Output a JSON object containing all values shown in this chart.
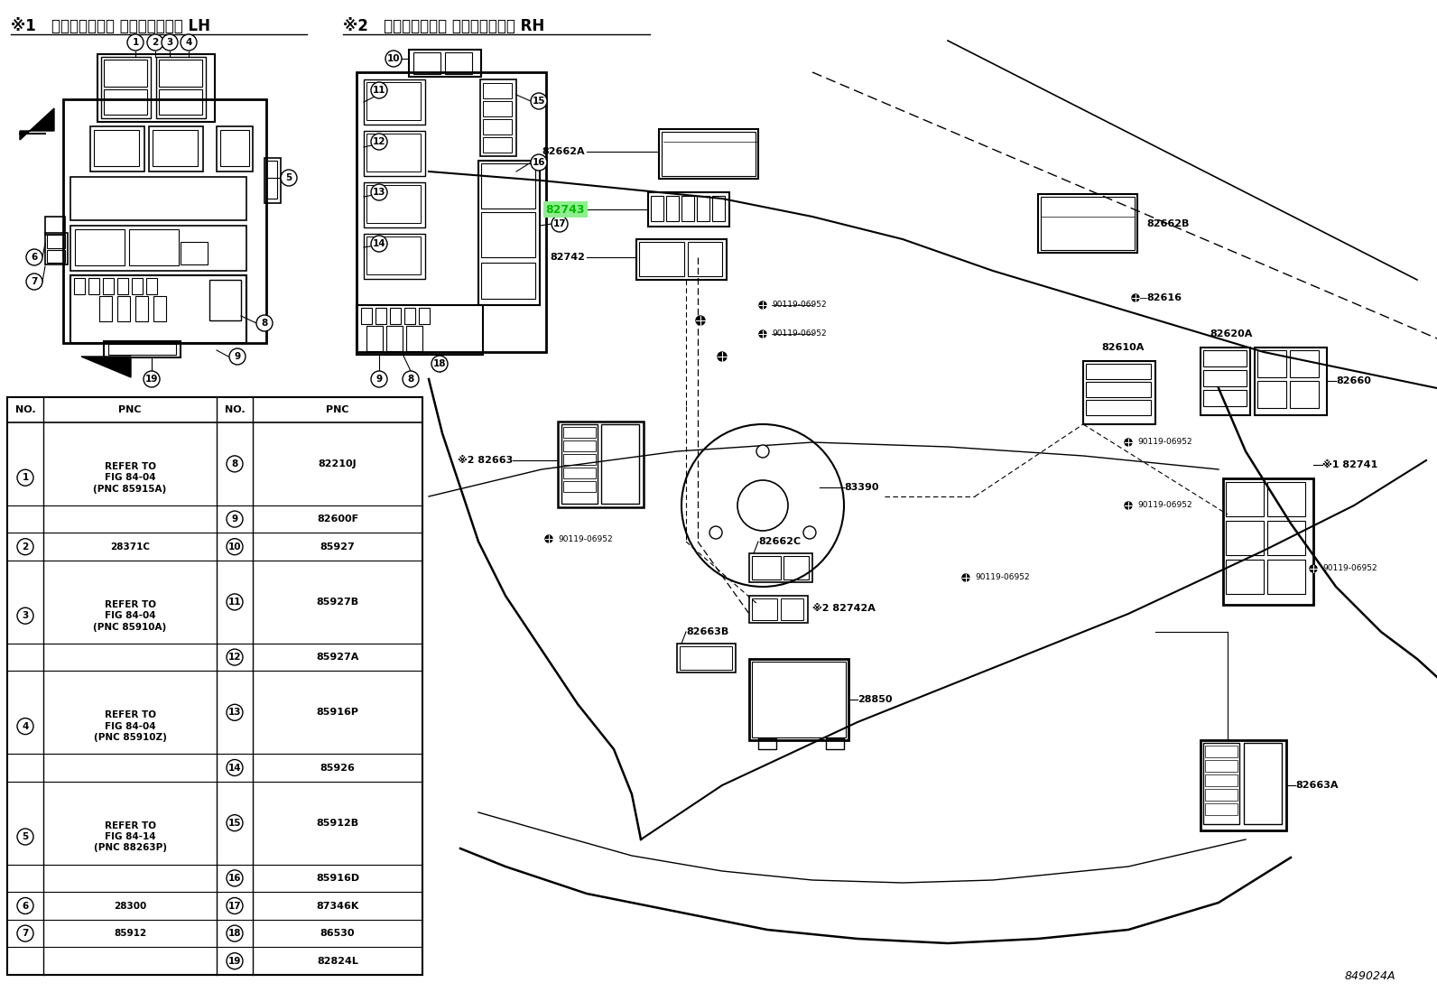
{
  "title1": "※1   エンジンルーム リレーブロック LH",
  "title2": "※2   エンジンルーム リレーブロック RH",
  "bg_color": "#ffffff",
  "line_color": "#000000",
  "highlight_color": "#00bb00",
  "highlight_bg": "#90ee90",
  "watermark": "849024A",
  "font_size_title": 12,
  "font_size_labels": 8,
  "font_size_small": 7,
  "table_rows": [
    [
      1,
      "REFER TO\nFIG 84-04\n(PNC 85915A)",
      8,
      "82210J",
      3,
      1
    ],
    [
      1,
      null,
      9,
      "82600F",
      0,
      1
    ],
    [
      2,
      "28371C",
      10,
      "85927",
      1,
      1
    ],
    [
      3,
      "REFER TO\nFIG 84-04\n(PNC 85910A)",
      11,
      "85927B",
      3,
      1
    ],
    [
      3,
      null,
      12,
      "85927A",
      0,
      1
    ],
    [
      4,
      "REFER TO\nFIG 84-04\n(PNC 85910Z)",
      13,
      "85916P",
      3,
      1
    ],
    [
      4,
      null,
      14,
      "85926",
      0,
      1
    ],
    [
      5,
      "REFER TO\nFIG 84-14\n(PNC 88263P)",
      15,
      "85912B",
      3,
      1
    ],
    [
      5,
      null,
      16,
      "85916D",
      0,
      1
    ],
    [
      6,
      "28300",
      17,
      "87346K",
      1,
      1
    ],
    [
      7,
      "85912",
      18,
      "86530",
      1,
      1
    ],
    [
      null,
      null,
      19,
      "82824L",
      0,
      1
    ]
  ]
}
